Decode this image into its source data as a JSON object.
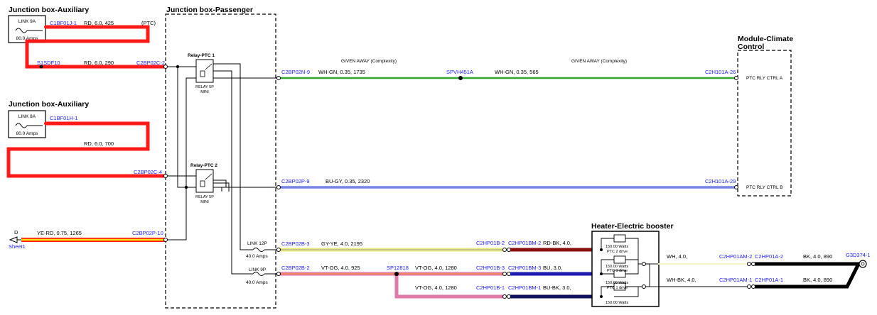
{
  "headers": {
    "jb_aux_1": "Junction box-Auxiliary",
    "jb_aux_2": "Junction box-Auxiliary",
    "jb_passenger": "Junction box-Passenger",
    "module_climate_1": "Module-Climate",
    "module_climate_2": "Control",
    "heater": "Heater-Electric booster"
  },
  "fuses": {
    "link9a": {
      "name": "LINK 9A",
      "rating": "80.0 Amps"
    },
    "link8a": {
      "name": "LINK 8A",
      "rating": "80.0 Amps"
    },
    "link12p": {
      "name": "LINK 12P",
      "rating": "40.0 Amps"
    },
    "link9p": {
      "name": "LINK 9P",
      "rating": "40.0 Amps"
    }
  },
  "relays": {
    "ptc1": {
      "title": "Relay-PTC 1",
      "sub1": "RELAY 5P",
      "sub2": "MINI"
    },
    "ptc2": {
      "title": "Relay-PTC 2",
      "sub1": "RELAY 5P",
      "sub2": "MINI"
    }
  },
  "connectors": {
    "c1bf01j1": "C1BF01J-1",
    "s1sdf10": "S1SDF10",
    "c2bp02c2": "C2BP02C-2",
    "c1bf01h1": "C1BF01H-1",
    "c2bp02c4": "C2BP02C-4",
    "c2bp02p10": "C2BP02P-10",
    "c2bp02n9": "C2BP02N-9",
    "spvh451a": "SPVH451A",
    "c2h101a26": "C2H101A-26",
    "c2bp02p9": "C2BP02P-9",
    "c2h101a29": "C2H101A-29",
    "c2bp02b3": "C2BP02B-3",
    "c2bp02b2": "C2BP02B-2",
    "sp12818": "SP12818",
    "c2hp01b2": "C2HP01B-2",
    "c2hp01bm2": "C2HP01BM-2",
    "c2hp01b3": "C2HP01B-3",
    "c2hp01bm3": "C2HP01BM-3",
    "c2hp01b1": "C2HP01B-1",
    "c2hp01bm1": "C2HP01BM-1",
    "c2hp01am2": "C2HP01AM-2",
    "c2hp01a2": "C2HP01A-2",
    "c2hp01am1": "C2HP01AM-1",
    "c2hp01a1": "C2HP01A-1",
    "g3d3741": "G3D374-1",
    "sheet1": "Sheet1"
  },
  "wires": {
    "w_ptc": "(PTC)",
    "w1": "RD, 6.0, 425",
    "w2": "RD, 6.0, 290",
    "w3": "RD, 6.0, 700",
    "w4": "YE-RD, 0.75, 1265",
    "w5": "WH-GN, 0.35, 1735",
    "w6": "WH-GN, 0.35, 565",
    "w7": "BU-GY, 0.35, 2320",
    "w8": "GY-YE, 4.0, 2195",
    "w9": "VT-OG, 4.0, 925",
    "w10": "VT-OG, 4.0, 1280",
    "w11": "VT-OG, 4.0, 1280",
    "w12": "RD-BK, 4.0,",
    "w13": "BU, 3.0,",
    "w14": "BU-BK, 3.0,",
    "w15": "WH, 4.0,",
    "w16": "WH-BK, 4.0,",
    "w17": "BK, 4.0, 890",
    "w18": "BK, 4.0, 890",
    "d_label": "D"
  },
  "notes": {
    "given_away_1": "GIVEN AWAY (Complexity)",
    "given_away_2": "GIVEN AWAY (Complexity)"
  },
  "module_pins": {
    "ptc_a": "PTC RLY CTRL A",
    "ptc_b": "PTC RLY CTRL B"
  },
  "heater": {
    "r1_watts": "150.00 Watts",
    "r1_label": "PTC 2 drive",
    "r2_watts": "150.00 Watts",
    "r2_label": "PTC 1 drive",
    "r3_watts": "150.00 Watts",
    "r3_label": "PTC 1 drive",
    "r4_watts": "150.00 Watts"
  },
  "colors": {
    "red": "#ff1a1a",
    "green": "#2ea82e",
    "blue": "#2a3fd6",
    "yellow": "#eaea7a",
    "violet": "#e07aa8",
    "darkred": "#8a1010",
    "navy": "#1a1a9a",
    "black": "#000000",
    "connector_text": "#1a1aff"
  }
}
